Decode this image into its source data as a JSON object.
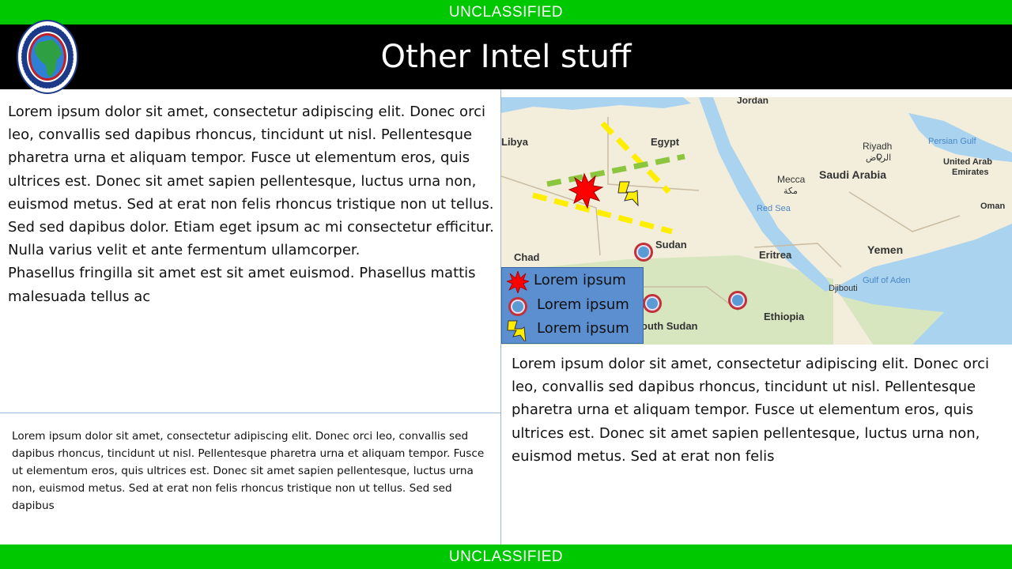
{
  "classification": {
    "top": "UNCLASSIFIED",
    "bottom": "UNCLASSIFIED"
  },
  "header": {
    "title": "Other Intel stuff",
    "seal_icon": "africom-seal-icon"
  },
  "left_top_text": "Lorem ipsum dolor sit amet, consectetur adipiscing elit. Donec orci leo, convallis sed dapibus rhoncus, tincidunt ut nisl. Pellentesque pharetra urna et aliquam tempor. Fusce ut elementum eros, quis ultrices est. Donec sit amet sapien pellentesque, luctus urna non, euismod metus. Sed at erat non felis rhoncus tristique non ut tellus. Sed sed dapibus dolor. Etiam eget ipsum ac mi consectetur efficitur. Nulla varius velit et ante fermentum ullamcorper.\nPhasellus fringilla sit amet est sit amet euismod. Phasellus mattis malesuada tellus ac",
  "left_bottom_text": "Lorem ipsum dolor sit amet, consectetur adipiscing elit. Donec orci leo, convallis sed dapibus rhoncus, tincidunt ut nisl. Pellentesque pharetra urna et aliquam tempor. Fusce ut elementum eros, quis ultrices est. Donec sit amet sapien pellentesque, luctus urna non, euismod metus. Sed at erat non felis rhoncus tristique non ut tellus. Sed sed dapibus",
  "right_text": "Lorem ipsum dolor sit amet, consectetur adipiscing elit. Donec orci leo, convallis sed dapibus rhoncus, tincidunt ut nisl. Pellentesque pharetra urna et aliquam tempor. Fusce ut elementum eros, quis ultrices est. Donec sit amet sapien pellentesque, luctus urna non, euismod metus. Sed at erat non felis",
  "map": {
    "labels": {
      "jordan": "Jordan",
      "libya": "Libya",
      "egypt": "Egypt",
      "riyadh": "Riyadh",
      "riyadh_ar": "الرياض",
      "persian_gulf": "Persian Gulf",
      "uae_1": "United Arab",
      "uae_2": "Emirates",
      "saudi_arabia": "Saudi Arabia",
      "mecca": "Mecca",
      "mecca_ar": "مكة",
      "red_sea": "Red Sea",
      "oman": "Oman",
      "sudan": "Sudan",
      "chad": "Chad",
      "eritrea": "Eritrea",
      "yemen": "Yemen",
      "gulf_of_aden": "Gulf of Aden",
      "djibouti": "Djibouti",
      "ethiopia": "Ethiopia",
      "south_sudan": "outh Sudan"
    },
    "colors": {
      "land": "#f3eedc",
      "water": "#a9d3ef",
      "border": "#c9bca2",
      "green_land": "#cfe3b8",
      "yellow_line": "#ffee00",
      "green_line": "#8cc63f",
      "marker_ring": "#c0313a",
      "marker_fill": "#5b9bd5",
      "explosion": "#ff0000",
      "lightning": "#ffee00"
    }
  },
  "legend": {
    "items": [
      {
        "icon": "explosion-icon",
        "label": "Lorem ipsum"
      },
      {
        "icon": "location-marker-icon",
        "label": "Lorem ipsum"
      },
      {
        "icon": "lightning-icon",
        "label": "Lorem ipsum"
      }
    ]
  }
}
